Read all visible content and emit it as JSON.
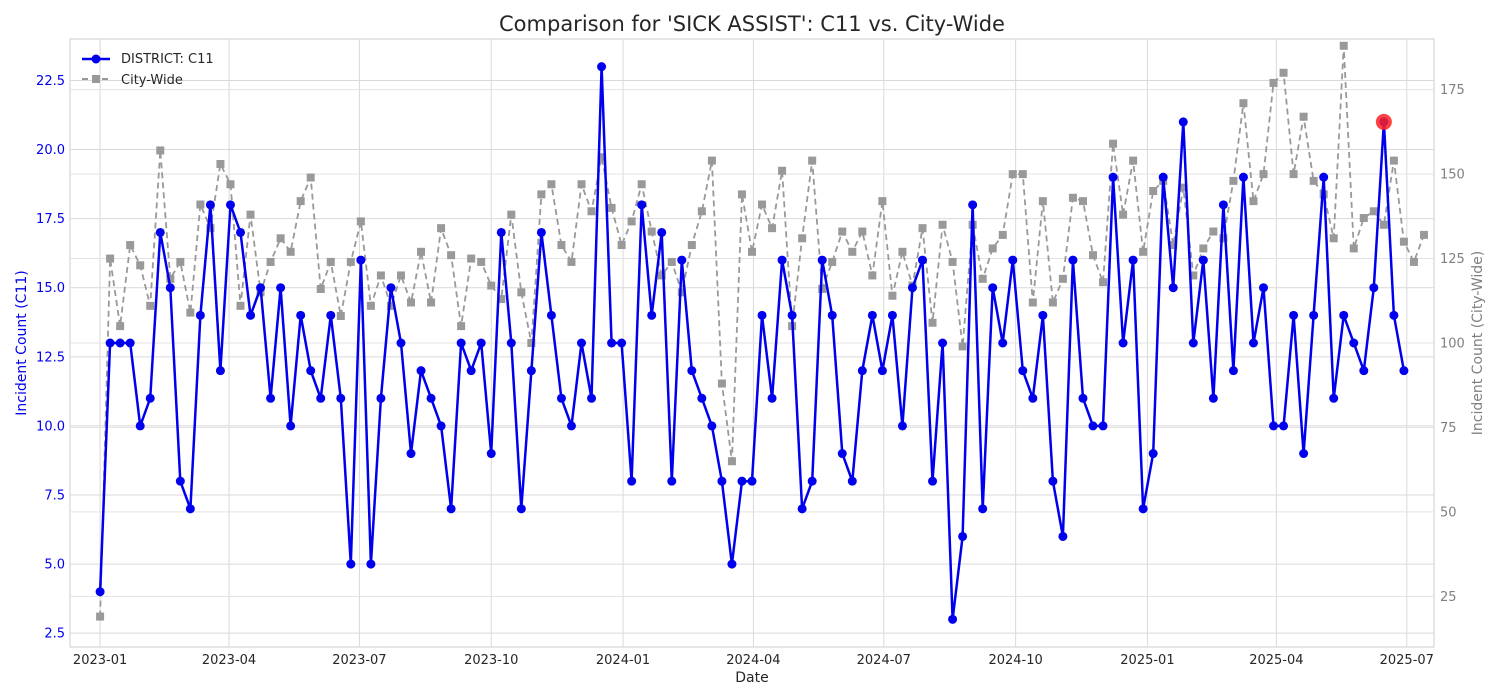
{
  "chart_data": {
    "type": "line",
    "title": "Comparison for 'SICK ASSIST': C11 vs. City-Wide",
    "xlabel": "Date",
    "ylabel_left": "Incident Count (C11)",
    "ylabel_right": "Incident Count (City-Wide)",
    "x_range": [
      "2022-12-11",
      "2025-07-20"
    ],
    "ylim_left": [
      2.0,
      24.0
    ],
    "ylim_right": [
      10,
      190
    ],
    "x_ticks": [
      {
        "date": "2023-01-01",
        "label": "2023-01"
      },
      {
        "date": "2023-04-01",
        "label": "2023-04"
      },
      {
        "date": "2023-07-01",
        "label": "2023-07"
      },
      {
        "date": "2023-10-01",
        "label": "2023-10"
      },
      {
        "date": "2024-01-01",
        "label": "2024-01"
      },
      {
        "date": "2024-04-01",
        "label": "2024-04"
      },
      {
        "date": "2024-07-01",
        "label": "2024-07"
      },
      {
        "date": "2024-10-01",
        "label": "2024-10"
      },
      {
        "date": "2025-01-01",
        "label": "2025-01"
      },
      {
        "date": "2025-04-01",
        "label": "2025-04"
      },
      {
        "date": "2025-07-01",
        "label": "2025-07"
      }
    ],
    "y_ticks_left": [
      2.5,
      5.0,
      7.5,
      10.0,
      12.5,
      15.0,
      17.5,
      20.0,
      22.5
    ],
    "y_ticks_left_labels": [
      "2.5",
      "5.0",
      "7.5",
      "10.0",
      "12.5",
      "15.0",
      "17.5",
      "20.0",
      "22.5"
    ],
    "y_ticks_right": [
      25,
      50,
      75,
      100,
      125,
      150,
      175
    ],
    "y_ticks_right_labels": [
      "25",
      "50",
      "75",
      "100",
      "125",
      "150",
      "175"
    ],
    "grid": true,
    "legend_position": "top-left",
    "x_start": "2023-01-01",
    "x_step_days": 7,
    "series": [
      {
        "name": "DISTRICT: C11",
        "axis": "left",
        "color": "#0000ee",
        "style": "solid",
        "marker": "circle",
        "values": [
          4,
          13,
          13,
          13,
          10,
          11,
          17,
          15,
          8,
          7,
          14,
          18,
          12,
          18,
          17,
          14,
          15,
          11,
          15,
          10,
          14,
          12,
          11,
          14,
          11,
          5,
          16,
          5,
          11,
          15,
          13,
          9,
          12,
          11,
          10,
          7,
          13,
          12,
          13,
          9,
          17,
          13,
          7,
          12,
          17,
          14,
          11,
          10,
          13,
          11,
          23,
          13,
          13,
          8,
          18,
          14,
          17,
          8,
          16,
          12,
          11,
          10,
          8,
          5,
          8,
          8,
          14,
          11,
          16,
          14,
          7,
          8,
          16,
          14,
          9,
          8,
          12,
          14,
          12,
          14,
          10,
          15,
          16,
          8,
          13,
          3,
          6,
          18,
          7,
          15,
          13,
          16,
          12,
          11,
          14,
          8,
          6,
          16,
          11,
          10,
          10,
          19,
          13,
          16,
          7,
          9,
          19,
          15,
          21,
          13,
          16,
          11,
          18,
          12,
          19,
          13,
          15,
          10,
          10,
          14,
          9,
          14,
          19,
          11,
          14,
          13,
          12,
          15,
          21,
          14,
          12
        ]
      },
      {
        "name": "City-Wide",
        "axis": "right",
        "color": "#999999",
        "style": "dashed",
        "marker": "square",
        "values": [
          19,
          125,
          105,
          129,
          123,
          111,
          157,
          119,
          124,
          109,
          141,
          134,
          153,
          147,
          111,
          138,
          115,
          124,
          131,
          127,
          142,
          149,
          116,
          124,
          108,
          124,
          136,
          111,
          120,
          111,
          120,
          112,
          127,
          112,
          134,
          126,
          105,
          125,
          124,
          117,
          113,
          138,
          115,
          100,
          144,
          147,
          129,
          124,
          147,
          139,
          155,
          140,
          129,
          136,
          147,
          133,
          120,
          124,
          115,
          129,
          139,
          154,
          88,
          65,
          144,
          127,
          141,
          134,
          151,
          105,
          131,
          154,
          116,
          124,
          133,
          127,
          133,
          120,
          142,
          114,
          127,
          117,
          134,
          106,
          135,
          124,
          99,
          135,
          119,
          128,
          132,
          150,
          150,
          112,
          142,
          112,
          119,
          143,
          142,
          126,
          118,
          159,
          138,
          154,
          127,
          145,
          148,
          129,
          146,
          120,
          128,
          133,
          131,
          148,
          171,
          142,
          150,
          177,
          180,
          150,
          167,
          148,
          144,
          131,
          188,
          128,
          137,
          139,
          135,
          154,
          130,
          124,
          132
        ]
      }
    ],
    "highlight": {
      "series": "DISTRICT: C11",
      "date": "2025-06-15",
      "value": 21,
      "color": "#ff2020"
    }
  }
}
